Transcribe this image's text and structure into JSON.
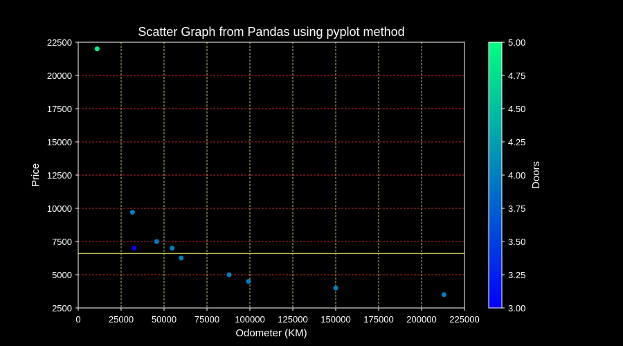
{
  "chart_data": {
    "type": "scatter",
    "title": "Scatter Graph from Pandas using pyplot method",
    "xlabel": "Odometer (KM)",
    "ylabel": "Price",
    "xlim": [
      0,
      225000
    ],
    "ylim": [
      2500,
      22500
    ],
    "xticks": [
      0,
      25000,
      50000,
      75000,
      100000,
      125000,
      150000,
      175000,
      200000,
      225000
    ],
    "yticks": [
      2500,
      5000,
      7500,
      10000,
      12500,
      15000,
      17500,
      20000,
      22500
    ],
    "grid": true,
    "hline": 6600,
    "colorbar": {
      "label": "Doors",
      "range": [
        3.0,
        5.0
      ],
      "ticks": [
        "3.00",
        "3.25",
        "3.50",
        "3.75",
        "4.00",
        "4.25",
        "4.50",
        "4.75",
        "5.00"
      ],
      "colormap": "winter"
    },
    "points": [
      {
        "x": 11000,
        "y": 22000,
        "doors": 5
      },
      {
        "x": 31600,
        "y": 9700,
        "doors": 4
      },
      {
        "x": 32500,
        "y": 7000,
        "doors": 3
      },
      {
        "x": 45700,
        "y": 7500,
        "doors": 4
      },
      {
        "x": 54700,
        "y": 7000,
        "doors": 4
      },
      {
        "x": 60000,
        "y": 6250,
        "doors": 4
      },
      {
        "x": 87900,
        "y": 5000,
        "doors": 4
      },
      {
        "x": 99200,
        "y": 4500,
        "doors": 4
      },
      {
        "x": 150000,
        "y": 4000,
        "doors": 4
      },
      {
        "x": 213100,
        "y": 3500,
        "doors": 4
      }
    ]
  },
  "colors": {
    "background": "#000000",
    "axes_edge": "#ffffff",
    "x_grid": "#ccff99",
    "y_grid": "#ff3333",
    "hline": "#ffff66",
    "cmap_low": "#0000ff",
    "cmap_high": "#00ff80"
  }
}
